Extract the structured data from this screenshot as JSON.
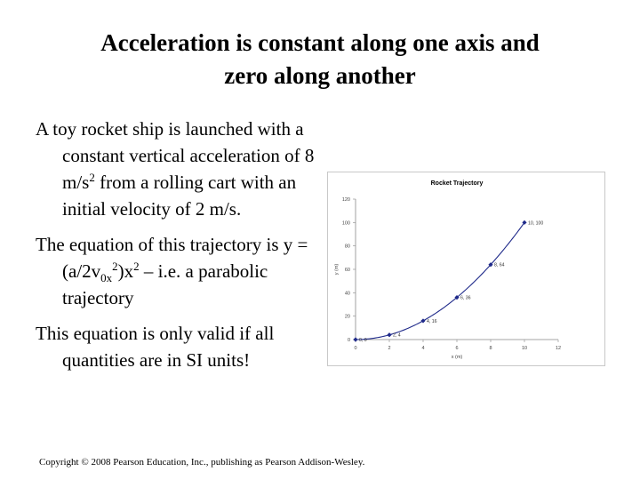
{
  "slide": {
    "title_line1": "Acceleration is constant along one axis and",
    "title_line2": "zero along another",
    "para1": "A toy rocket ship is launched with a constant vertical acceleration of 8 m/s",
    "para1_sup": "2",
    "para1_end": " from a rolling cart with an initial velocity of 2 m/s.",
    "para2_a": "The equation of this trajectory is  y = (a/2v",
    "para2_sub": "0x",
    "para2_sup": "2",
    "para2_b": ")x",
    "para2_sup2": "2",
    "para2_c": " – i.e. a parabolic trajectory",
    "para3": "This equation is only valid if all quantities are in SI units!",
    "copyright": "Copyright © 2008 Pearson Education, Inc., publishing as Pearson Addison-Wesley."
  },
  "chart_data": {
    "type": "line",
    "title": "Rocket Trajectory",
    "xlabel": "x (m)",
    "ylabel": "y (m)",
    "xlim": [
      0,
      12
    ],
    "ylim": [
      0,
      120
    ],
    "xticks": [
      0,
      2,
      4,
      6,
      8,
      10,
      12
    ],
    "yticks": [
      0,
      20,
      40,
      60,
      80,
      100,
      120
    ],
    "x": [
      0,
      2,
      4,
      6,
      8,
      10
    ],
    "y": [
      0,
      4,
      16,
      36,
      64,
      100
    ],
    "point_labels": [
      "0, 0",
      "2, 4",
      "4, 16",
      "6, 36",
      "8, 64",
      "10, 100"
    ],
    "color": "#1f2a8a",
    "grid": false,
    "legend": "none"
  }
}
